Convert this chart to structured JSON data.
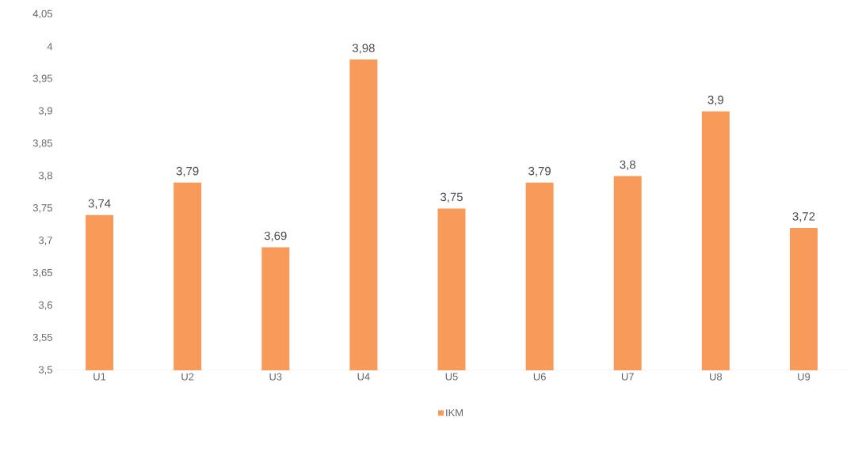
{
  "chart_data": {
    "type": "bar",
    "categories": [
      "U1",
      "U2",
      "U3",
      "U4",
      "U5",
      "U6",
      "U7",
      "U8",
      "U9"
    ],
    "series": [
      {
        "name": "IKM",
        "color": "#f79a5a",
        "values": [
          3.74,
          3.79,
          3.69,
          3.98,
          3.75,
          3.79,
          3.8,
          3.9,
          3.72
        ],
        "value_labels": [
          "3,74",
          "3,79",
          "3,69",
          "3,98",
          "3,75",
          "3,79",
          "3,8",
          "3,9",
          "3,72"
        ]
      }
    ],
    "ylim": [
      3.5,
      4.05
    ],
    "yticks": [
      {
        "value": 3.5,
        "label": "3,5"
      },
      {
        "value": 3.55,
        "label": "3,55"
      },
      {
        "value": 3.6,
        "label": "3,6"
      },
      {
        "value": 3.65,
        "label": "3,65"
      },
      {
        "value": 3.7,
        "label": "3,7"
      },
      {
        "value": 3.75,
        "label": "3,75"
      },
      {
        "value": 3.8,
        "label": "3,8"
      },
      {
        "value": 3.85,
        "label": "3,85"
      },
      {
        "value": 3.9,
        "label": "3,9"
      },
      {
        "value": 3.95,
        "label": "3,95"
      },
      {
        "value": 4,
        "label": "4"
      },
      {
        "value": 4.05,
        "label": "4,05"
      }
    ],
    "grid": false,
    "legend": "bottom"
  }
}
